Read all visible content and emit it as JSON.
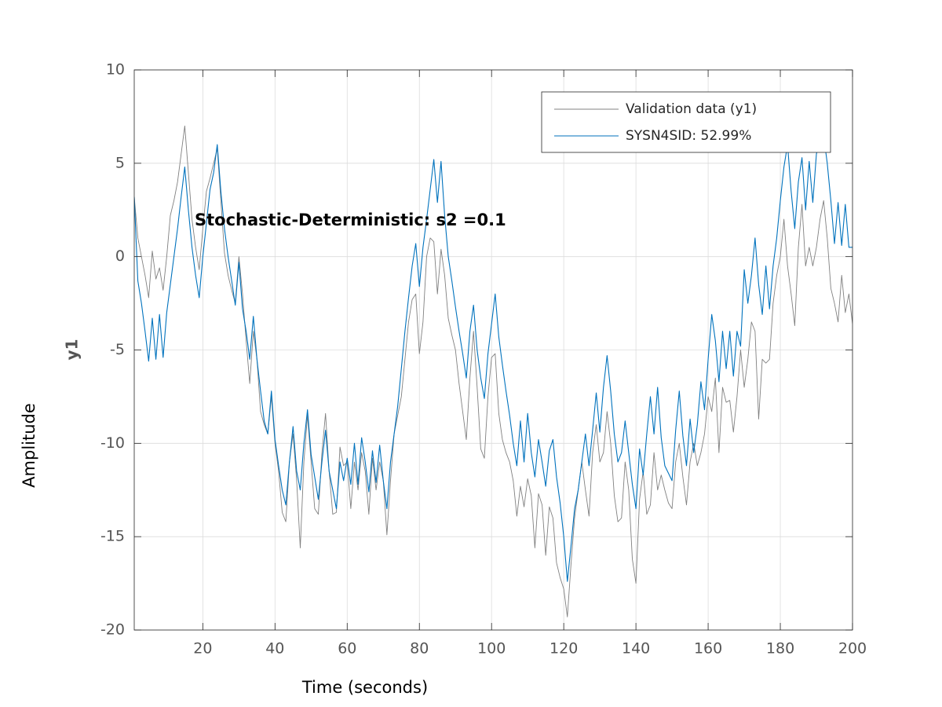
{
  "chart_data": {
    "type": "line",
    "annotation": "Stochastic-Deterministic: s2 =0.1",
    "xlabel": "Time (seconds)",
    "ylabel": "Amplitude",
    "output_label": "y1",
    "x": [
      1,
      2,
      3,
      4,
      5,
      6,
      7,
      8,
      9,
      10,
      11,
      12,
      13,
      14,
      15,
      16,
      17,
      18,
      19,
      20,
      21,
      22,
      23,
      24,
      25,
      26,
      27,
      28,
      29,
      30,
      31,
      32,
      33,
      34,
      35,
      36,
      37,
      38,
      39,
      40,
      41,
      42,
      43,
      44,
      45,
      46,
      47,
      48,
      49,
      50,
      51,
      52,
      53,
      54,
      55,
      56,
      57,
      58,
      59,
      60,
      61,
      62,
      63,
      64,
      65,
      66,
      67,
      68,
      69,
      70,
      71,
      72,
      73,
      74,
      75,
      76,
      77,
      78,
      79,
      80,
      81,
      82,
      83,
      84,
      85,
      86,
      87,
      88,
      89,
      90,
      91,
      92,
      93,
      94,
      95,
      96,
      97,
      98,
      99,
      100,
      101,
      102,
      103,
      104,
      105,
      106,
      107,
      108,
      109,
      110,
      111,
      112,
      113,
      114,
      115,
      116,
      117,
      118,
      119,
      120,
      121,
      122,
      123,
      124,
      125,
      126,
      127,
      128,
      129,
      130,
      131,
      132,
      133,
      134,
      135,
      136,
      137,
      138,
      139,
      140,
      141,
      142,
      143,
      144,
      145,
      146,
      147,
      148,
      149,
      150,
      151,
      152,
      153,
      154,
      155,
      156,
      157,
      158,
      159,
      160,
      161,
      162,
      163,
      164,
      165,
      166,
      167,
      168,
      169,
      170,
      171,
      172,
      173,
      174,
      175,
      176,
      177,
      178,
      179,
      180,
      181,
      182,
      183,
      184,
      185,
      186,
      187,
      188,
      189,
      190,
      191,
      192,
      193,
      194,
      195,
      196,
      197,
      198,
      199,
      200
    ],
    "series": [
      {
        "name": "Validation data (y1)",
        "color": "#808080",
        "width": 0.9,
        "values": [
          3.2,
          1,
          0,
          -1,
          -2.2,
          0.3,
          -1.2,
          -0.6,
          -1.8,
          0,
          2.2,
          3,
          4,
          5.5,
          7,
          4.5,
          2,
          0.5,
          -0.7,
          1.5,
          3.5,
          4.2,
          5,
          5.8,
          3,
          0.2,
          -1,
          -1.8,
          -2.5,
          0,
          -2,
          -4.5,
          -6.8,
          -4,
          -5.5,
          -8.3,
          -9,
          -9.5,
          -7.5,
          -10,
          -11.5,
          -13.7,
          -14.2,
          -11,
          -9.5,
          -12,
          -15.6,
          -11,
          -8.5,
          -11,
          -13.5,
          -13.8,
          -10.5,
          -8.4,
          -11.5,
          -13.8,
          -13.7,
          -10.2,
          -11.2,
          -11,
          -13.5,
          -11,
          -12.5,
          -10.5,
          -11.5,
          -13.8,
          -10.8,
          -12.5,
          -11,
          -12,
          -14.9,
          -12,
          -9.5,
          -8.5,
          -7.5,
          -5.5,
          -3.5,
          -2.3,
          -2,
          -5.2,
          -3.5,
          0,
          1,
          0.8,
          -2,
          0.4,
          -1,
          -3.3,
          -4.2,
          -5,
          -6.8,
          -8.3,
          -9.8,
          -6.5,
          -4,
          -7,
          -10.3,
          -10.8,
          -7.5,
          -5.4,
          -5.2,
          -8.4,
          -9.8,
          -10.5,
          -11,
          -12,
          -13.9,
          -12.3,
          -13.4,
          -11.9,
          -12.8,
          -15.6,
          -12.7,
          -13.3,
          -16,
          -13.4,
          -14,
          -16.4,
          -17.2,
          -17.8,
          -19.3,
          -16.5,
          -14,
          -12.5,
          -11,
          -12.5,
          -13.9,
          -10.5,
          -9,
          -11,
          -10.5,
          -8.3,
          -10,
          -12.8,
          -14.2,
          -14,
          -11,
          -12.5,
          -16.2,
          -17.5,
          -13,
          -11.5,
          -13.8,
          -13.3,
          -10.5,
          -12.5,
          -11.7,
          -12.5,
          -13.2,
          -13.5,
          -11,
          -10,
          -11.8,
          -13.3,
          -11,
          -10,
          -11.2,
          -10.5,
          -9.5,
          -7.5,
          -8.3,
          -6.5,
          -10.5,
          -7,
          -7.8,
          -7.7,
          -9.4,
          -7.5,
          -5,
          -7,
          -5.5,
          -3.5,
          -4,
          -8.7,
          -5.5,
          -5.7,
          -5.5,
          -2.5,
          -1,
          0,
          2,
          -0.5,
          -2,
          -3.7,
          0.5,
          2.8,
          -0.5,
          0.5,
          -0.5,
          0.5,
          2,
          3,
          1,
          -1.7,
          -2.5,
          -3.5,
          -1,
          -3,
          -2,
          -3.6
        ]
      },
      {
        "name": "SYSN4SID: 52.99%",
        "color": "#0072bd",
        "width": 1.1,
        "values": [
          3.2,
          -1.3,
          -2.5,
          -4,
          -5.6,
          -3.3,
          -5.5,
          -3.1,
          -5.4,
          -3,
          -1.5,
          0,
          1.5,
          3.2,
          4.8,
          2.5,
          0.5,
          -1,
          -2.2,
          0,
          1.8,
          3.6,
          4.5,
          6,
          3.5,
          1.5,
          0,
          -1.3,
          -2.6,
          -0.3,
          -2.8,
          -4,
          -5.5,
          -3.2,
          -5.5,
          -7.2,
          -8.8,
          -9.5,
          -7.2,
          -9.8,
          -11.2,
          -12.5,
          -13.3,
          -11,
          -9.1,
          -11.5,
          -12.5,
          -10,
          -8.2,
          -10.6,
          -11.8,
          -13,
          -11,
          -9.3,
          -11.5,
          -12.5,
          -13.5,
          -11,
          -12,
          -10.8,
          -12.2,
          -10,
          -12.2,
          -9.7,
          -11,
          -12.6,
          -10.4,
          -12.1,
          -10.1,
          -12,
          -13.5,
          -11,
          -9.5,
          -8,
          -6,
          -4,
          -2.2,
          -0.5,
          0.7,
          -1.6,
          0.5,
          2,
          3.6,
          5.2,
          2.9,
          5.1,
          2.2,
          0,
          -1.3,
          -2.7,
          -4,
          -5.2,
          -6.5,
          -4,
          -2.6,
          -5,
          -6.5,
          -7.6,
          -5.2,
          -3.6,
          -2,
          -4.3,
          -5.8,
          -7.2,
          -8.5,
          -10,
          -11.2,
          -8.8,
          -11,
          -8.4,
          -10.5,
          -11.8,
          -9.8,
          -11,
          -12.3,
          -10.4,
          -9.8,
          -11.8,
          -13.2,
          -15,
          -17.4,
          -15.5,
          -13.5,
          -12.5,
          -11,
          -9.5,
          -11.2,
          -9.3,
          -7.3,
          -9.4,
          -7,
          -5.3,
          -7.2,
          -9.5,
          -11,
          -10.5,
          -8.8,
          -10.5,
          -12.2,
          -13.5,
          -10.3,
          -11.7,
          -9.5,
          -7.5,
          -9.5,
          -7,
          -9.7,
          -11.2,
          -11.6,
          -12,
          -9.3,
          -7.2,
          -9.6,
          -11.2,
          -8.7,
          -10.5,
          -9,
          -6.7,
          -8.2,
          -5.5,
          -3.1,
          -4.5,
          -6.7,
          -4,
          -6,
          -4,
          -6.4,
          -4,
          -4.8,
          -0.7,
          -2.5,
          -1,
          1,
          -1.5,
          -3.1,
          -0.5,
          -2.8,
          -0.5,
          1,
          3,
          4.8,
          6,
          3.5,
          1.5,
          4,
          5.3,
          2.5,
          5.1,
          2.9,
          5.5,
          6.3,
          6.5,
          5,
          3,
          0.7,
          2.9,
          0.6,
          2.8,
          0.5,
          0.5
        ]
      }
    ],
    "xlim": [
      1,
      200
    ],
    "xticks": [
      20,
      40,
      60,
      80,
      100,
      120,
      140,
      160,
      180,
      200
    ],
    "ylim": [
      -20,
      10
    ],
    "yticks": [
      -20,
      -15,
      -10,
      -5,
      0,
      5,
      10
    ],
    "grid": true,
    "legend": "northeast"
  }
}
